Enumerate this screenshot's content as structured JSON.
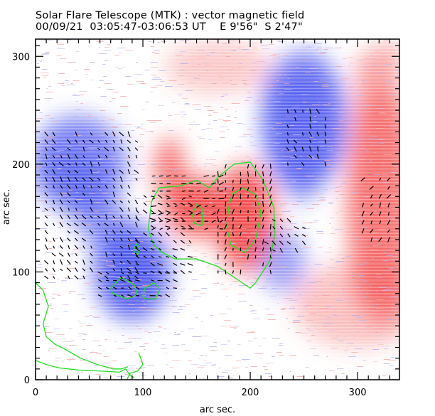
{
  "header": {
    "title": "Solar Flare Telescope (MTK) : vector magnetic field",
    "date": "00/09/21",
    "time_range": "03:05:47-03:06:53 UT",
    "position_ew": "E 9'56\"",
    "position_ns": "S 2'47\""
  },
  "colors": {
    "positive_polarity": "#f24848",
    "negative_polarity": "#4a55ee",
    "contour": "#22dd22",
    "vectors": "#000000",
    "frame": "#000000"
  },
  "chart_data": {
    "type": "heatmap",
    "title": "Solar Flare Telescope (MTK) : vector magnetic field",
    "subtitle": "00/09/21  03:05:47-03:06:53 UT    E 9'56\"  S 2'47\"",
    "xlabel": "arc sec.",
    "ylabel": "arc sec.",
    "xlim": [
      0,
      339
    ],
    "ylim": [
      0,
      316
    ],
    "x_major_ticks": [
      0,
      100,
      200,
      300
    ],
    "y_major_ticks": [
      0,
      100,
      200,
      300
    ],
    "x_minor_step": 10,
    "y_minor_step": 10,
    "x_tick_labels": [
      "0",
      "100",
      "200",
      "300"
    ],
    "y_tick_labels": [
      "0",
      "100",
      "200",
      "300"
    ],
    "grid": false,
    "colormap": "blue (negative) - white - red (positive) line-of-sight field",
    "regions": [
      {
        "polarity": "positive",
        "label": "central positive core",
        "x": 150,
        "y": 160,
        "strength": 1.0
      },
      {
        "polarity": "positive",
        "label": "east positive lobe",
        "x": 195,
        "y": 150,
        "strength": 1.0
      },
      {
        "polarity": "positive",
        "label": "north positive arm",
        "x": 125,
        "y": 195,
        "strength": 0.8
      },
      {
        "polarity": "positive",
        "label": "western positive plage",
        "x": 325,
        "y": 160,
        "strength": 0.6
      },
      {
        "polarity": "positive",
        "label": "south-west positive plage",
        "x": 300,
        "y": 70,
        "strength": 0.35
      },
      {
        "polarity": "positive",
        "label": "north positive plage",
        "x": 170,
        "y": 290,
        "strength": 0.3
      },
      {
        "polarity": "negative",
        "label": "south negative core",
        "x": 90,
        "y": 100,
        "strength": 0.95
      },
      {
        "polarity": "negative",
        "label": "west negative arm",
        "x": 40,
        "y": 200,
        "strength": 0.75
      },
      {
        "polarity": "negative",
        "label": "north-east negative region",
        "x": 250,
        "y": 240,
        "strength": 0.8
      },
      {
        "polarity": "negative",
        "label": "south-east negative patch",
        "x": 230,
        "y": 110,
        "strength": 0.55
      }
    ],
    "contours": [
      {
        "name": "central-positive-contour",
        "points": [
          [
            110,
            125
          ],
          [
            105,
            140
          ],
          [
            108,
            165
          ],
          [
            115,
            178
          ],
          [
            135,
            180
          ],
          [
            150,
            185
          ],
          [
            162,
            178
          ],
          [
            170,
            188
          ],
          [
            185,
            200
          ],
          [
            200,
            202
          ],
          [
            212,
            185
          ],
          [
            222,
            160
          ],
          [
            223,
            135
          ],
          [
            218,
            110
          ],
          [
            205,
            90
          ],
          [
            200,
            85
          ],
          [
            185,
            95
          ],
          [
            170,
            105
          ],
          [
            150,
            112
          ],
          [
            130,
            112
          ],
          [
            118,
            118
          ],
          [
            110,
            125
          ]
        ]
      },
      {
        "name": "positive-core-contour",
        "points": [
          [
            180,
            160
          ],
          [
            183,
            172
          ],
          [
            193,
            178
          ],
          [
            205,
            172
          ],
          [
            210,
            155
          ],
          [
            205,
            130
          ],
          [
            195,
            118
          ],
          [
            182,
            125
          ],
          [
            178,
            142
          ],
          [
            180,
            160
          ]
        ]
      },
      {
        "name": "small-inner-contour",
        "points": [
          [
            146,
            153
          ],
          [
            150,
            163
          ],
          [
            156,
            158
          ],
          [
            155,
            143
          ],
          [
            148,
            145
          ],
          [
            146,
            153
          ]
        ]
      },
      {
        "name": "southern-contour-a",
        "points": [
          [
            70,
            85
          ],
          [
            72,
            80
          ],
          [
            85,
            75
          ],
          [
            95,
            79
          ],
          [
            92,
            88
          ],
          [
            80,
            95
          ],
          [
            70,
            85
          ]
        ]
      },
      {
        "name": "southern-contour-b",
        "points": [
          [
            100,
            78
          ],
          [
            102,
            85
          ],
          [
            110,
            90
          ],
          [
            116,
            84
          ],
          [
            112,
            75
          ],
          [
            102,
            75
          ],
          [
            100,
            78
          ]
        ]
      },
      {
        "name": "small-contour-c",
        "points": [
          [
            91,
            120
          ],
          [
            94,
            126
          ],
          [
            97,
            122
          ],
          [
            95,
            116
          ],
          [
            91,
            120
          ]
        ]
      },
      {
        "name": "left-contour",
        "points": [
          [
            0,
            90
          ],
          [
            7,
            83
          ],
          [
            12,
            68
          ],
          [
            7,
            52
          ],
          [
            10,
            40
          ],
          [
            18,
            33
          ],
          [
            28,
            28
          ],
          [
            42,
            20
          ],
          [
            58,
            14
          ],
          [
            72,
            10
          ],
          [
            80,
            10
          ],
          [
            86,
            12
          ]
        ]
      },
      {
        "name": "bottom-contour",
        "points": [
          [
            0,
            18
          ],
          [
            10,
            14
          ],
          [
            22,
            11
          ],
          [
            40,
            9
          ],
          [
            62,
            8
          ],
          [
            78,
            7
          ],
          [
            84,
            10
          ],
          [
            88,
            4
          ],
          [
            92,
            2
          ]
        ]
      },
      {
        "name": "bottom-contour-b",
        "points": [
          [
            85,
            0
          ],
          [
            88,
            6
          ],
          [
            95,
            8
          ],
          [
            100,
            14
          ],
          [
            98,
            20
          ],
          [
            96,
            25
          ]
        ]
      }
    ],
    "vector_regions": [
      {
        "x0": 10,
        "x1": 100,
        "y0": 95,
        "y1": 230,
        "angle_deg": -55,
        "spacing": 7
      },
      {
        "x0": 95,
        "x1": 145,
        "y0": 100,
        "y1": 170,
        "angle_deg": -30,
        "spacing": 7
      },
      {
        "x0": 110,
        "x1": 175,
        "y0": 140,
        "y1": 190,
        "angle_deg": 15,
        "spacing": 7
      },
      {
        "x0": 170,
        "x1": 225,
        "y0": 100,
        "y1": 200,
        "angle_deg": 85,
        "spacing": 7
      },
      {
        "x0": 60,
        "x1": 130,
        "y0": 78,
        "y1": 100,
        "angle_deg": -20,
        "spacing": 7
      },
      {
        "x0": 235,
        "x1": 275,
        "y0": 200,
        "y1": 250,
        "angle_deg": -65,
        "spacing": 7
      },
      {
        "x0": 305,
        "x1": 335,
        "y0": 130,
        "y1": 190,
        "angle_deg": 60,
        "spacing": 8
      },
      {
        "x0": 215,
        "x1": 255,
        "y0": 120,
        "y1": 150,
        "angle_deg": -45,
        "spacing": 7
      }
    ]
  },
  "axes": {
    "xlabel": "arc sec.",
    "ylabel": "arc sec."
  }
}
